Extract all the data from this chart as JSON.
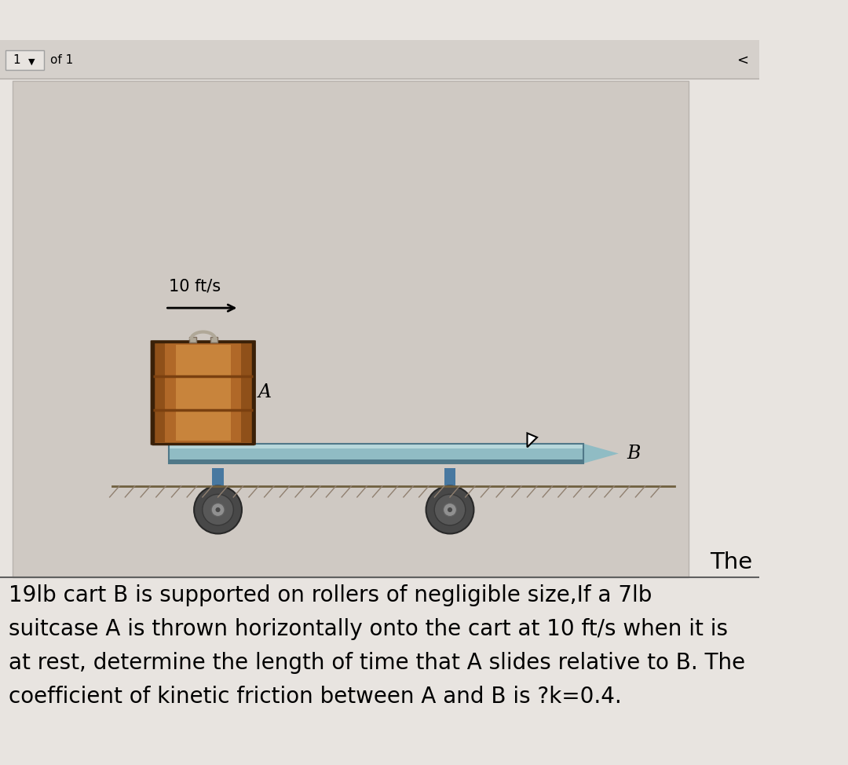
{
  "bg_color": "#e8e4e0",
  "diagram_bg": "#dbd6d0",
  "toolbar_bg": "#d8d3ce",
  "speed_label": "10 ft/s",
  "label_A": "A",
  "label_B": "B",
  "the_label": "The",
  "problem_text_line1": "19lb cart B is supported on rollers of negligible size,If a 7lb",
  "problem_text_line2": "suitcase A is thrown horizontally onto the cart at 10 ft/s when it is",
  "problem_text_line3": "at rest, determine the length of time that A slides relative to B. The",
  "problem_text_line4": "coefficient of kinetic friction between A and B is ?k=0.4.",
  "suitcase_color_light": "#c8843c",
  "suitcase_color_mid": "#b06828",
  "suitcase_color_dark": "#7a4010",
  "suitcase_border": "#3a2008",
  "cart_color_top": "#b8d8dc",
  "cart_color_mid": "#90bcc4",
  "cart_color_dark": "#507888",
  "wheel_outer": "#484848",
  "wheel_mid": "#686868",
  "wheel_hub": "#909090",
  "wheel_blue": "#4878a0",
  "ground_color": "#706040"
}
